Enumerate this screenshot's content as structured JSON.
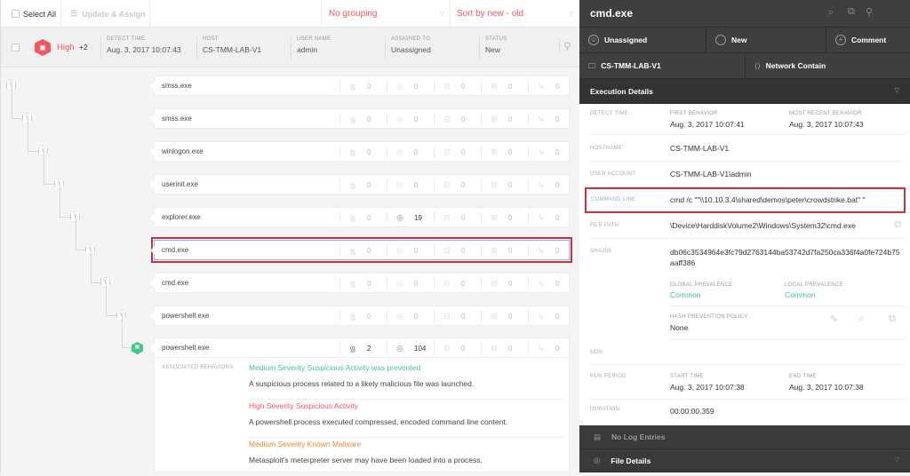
{
  "toolbar": {
    "select_all": "Select All",
    "update_assign": "Update & Assign",
    "grouping": "No grouping",
    "sort": "Sort by new - old"
  },
  "alert": {
    "severity": "High",
    "extra": "+2",
    "columns": [
      {
        "label": "DETECT TIME",
        "value": "Aug. 3, 2017 10:07:43"
      },
      {
        "label": "HOST",
        "value": "CS-TMM-LAB-V1"
      },
      {
        "label": "USER NAME",
        "value": "admin"
      },
      {
        "label": "ASSIGNED TO",
        "value": "Unassigned"
      },
      {
        "label": "STATUS",
        "value": "New"
      }
    ]
  },
  "process_tree": [
    {
      "name": "smss.exe",
      "metrics": [
        0,
        0,
        0,
        0,
        0
      ]
    },
    {
      "name": "smss.exe",
      "metrics": [
        0,
        0,
        0,
        0,
        0
      ]
    },
    {
      "name": "winlogon.exe",
      "metrics": [
        0,
        0,
        0,
        0,
        0
      ]
    },
    {
      "name": "userinit.exe",
      "metrics": [
        0,
        0,
        0,
        0,
        0
      ]
    },
    {
      "name": "explorer.exe",
      "metrics": [
        0,
        19,
        0,
        0,
        0
      ]
    },
    {
      "name": "cmd.exe",
      "metrics": [
        0,
        0,
        0,
        0,
        0
      ],
      "selected": true
    },
    {
      "name": "cmd.exe",
      "metrics": [
        0,
        0,
        0,
        0,
        0
      ]
    },
    {
      "name": "powershell.exe",
      "metrics": [
        0,
        0,
        0,
        0,
        0
      ]
    },
    {
      "name": "powershell.exe",
      "metrics": [
        2,
        104,
        0,
        0,
        0
      ]
    }
  ],
  "behaviors": {
    "label": "ASSOCIATED BEHAVIORS",
    "items": [
      {
        "title": "Medium Severity Suspicious Activity was prevented",
        "desc": "A suspicious process related to a likely malicious file was launched.",
        "color": "#3fc98a"
      },
      {
        "title": "High Severity Suspicious Activity",
        "desc": "A powershell process executed compressed, encoded command line content.",
        "color": "#f4565f"
      },
      {
        "title": "Medium Severity Known Malware",
        "desc": "Metasploit's meterpreter server may have been loaded into a process.",
        "color": "#f7842f"
      }
    ]
  },
  "detail": {
    "title": "cmd.exe",
    "assignee": "Unassigned",
    "status": "New",
    "comment": "Comment",
    "host": "CS-TMM-LAB-V1",
    "network": "Network Contain",
    "section": "Execution Details",
    "detect_time_label": "DETECT TIME",
    "first_behavior_label": "FIRST BEHAVIOR",
    "first_behavior": "Aug. 3, 2017 10:07:41",
    "recent_behavior_label": "MOST RECENT BEHAVIOR",
    "recent_behavior": "Aug. 3, 2017 10:07:43",
    "hostname_label": "HOSTNAME",
    "hostname": "CS-TMM-LAB-V1",
    "user_label": "USER ACCOUNT",
    "user": "CS-TMM-LAB-V1\\admin",
    "cmd_label": "COMMAND LINE",
    "cmd": "cmd /c \"\"\\\\10.10.3.4\\shared\\demos\\peter\\crowdstrike.bat\" \"",
    "path_label": "FILE PATH",
    "path": "\\Device\\HarddiskVolume2\\Windows\\System32\\cmd.exe",
    "sha_label": "SHA256",
    "sha": "db06c3534964e3fc79d2763144ba53742d7fa250ca336f4a0fe724b75aaff386",
    "global_label": "GLOBAL PREVALENCE",
    "global": "Common",
    "local_label": "LOCAL PREVALENCE",
    "local": "Common",
    "hash_label": "HASH PREVENTION POLICY",
    "hash": "None",
    "md5_label": "MD5",
    "run_label": "RUN PERIOD",
    "start_label": "START TIME",
    "start": "Aug. 3, 2017 10:07:38",
    "end_label": "END TIME",
    "end": "Aug. 3, 2017 10:07:38",
    "duration_label": "DURATION",
    "duration": "00:00:00.359",
    "log": "No Log Entries",
    "file_details": "File Details"
  }
}
